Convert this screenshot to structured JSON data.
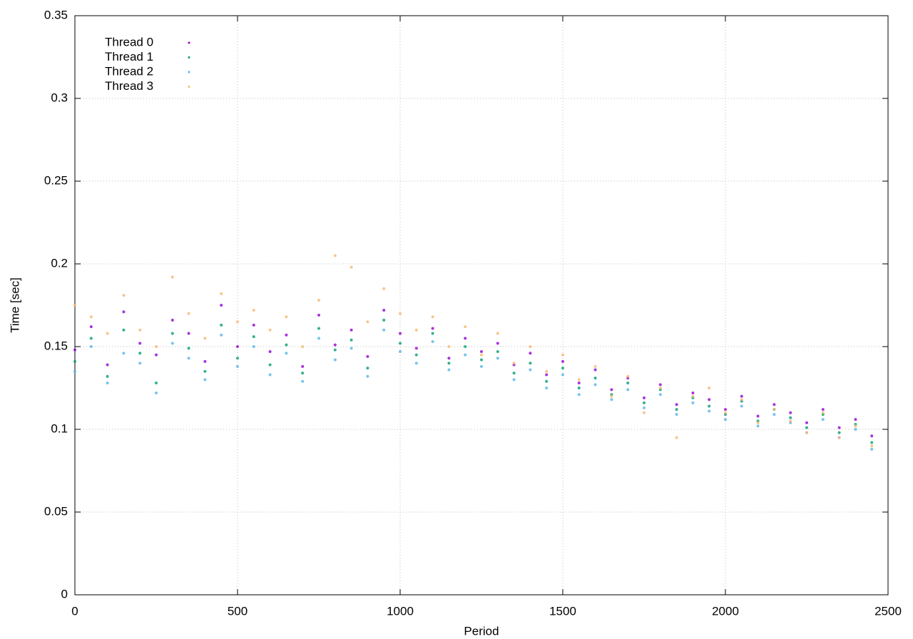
{
  "chart_data": {
    "type": "scatter",
    "xlabel": "Period",
    "ylabel": "Time [sec]",
    "x": [
      0,
      50,
      100,
      150,
      200,
      250,
      300,
      350,
      400,
      450,
      500,
      550,
      600,
      650,
      700,
      750,
      800,
      850,
      900,
      950,
      1000,
      1050,
      1100,
      1150,
      1200,
      1250,
      1300,
      1350,
      1400,
      1450,
      1500,
      1550,
      1600,
      1650,
      1700,
      1750,
      1800,
      1850,
      1900,
      1950,
      2000,
      2050,
      2100,
      2150,
      2200,
      2250,
      2300,
      2350,
      2400,
      2450
    ],
    "series": [
      {
        "name": "Thread 0",
        "color": "#9400d3",
        "values": [
          0.148,
          0.162,
          0.139,
          0.171,
          0.152,
          0.145,
          0.166,
          0.158,
          0.141,
          0.175,
          0.15,
          0.163,
          0.147,
          0.157,
          0.138,
          0.169,
          0.151,
          0.16,
          0.144,
          0.172,
          0.158,
          0.149,
          0.161,
          0.143,
          0.155,
          0.147,
          0.152,
          0.139,
          0.146,
          0.133,
          0.141,
          0.128,
          0.136,
          0.124,
          0.131,
          0.119,
          0.127,
          0.115,
          0.122,
          0.118,
          0.112,
          0.12,
          0.108,
          0.115,
          0.11,
          0.104,
          0.112,
          0.101,
          0.106,
          0.096
        ]
      },
      {
        "name": "Thread 1",
        "color": "#009e73",
        "values": [
          0.141,
          0.155,
          0.132,
          0.16,
          0.146,
          0.128,
          0.158,
          0.149,
          0.135,
          0.163,
          0.143,
          0.156,
          0.139,
          0.151,
          0.134,
          0.161,
          0.148,
          0.154,
          0.137,
          0.166,
          0.152,
          0.145,
          0.158,
          0.14,
          0.15,
          0.142,
          0.147,
          0.134,
          0.14,
          0.129,
          0.137,
          0.125,
          0.131,
          0.121,
          0.128,
          0.116,
          0.124,
          0.112,
          0.119,
          0.114,
          0.109,
          0.117,
          0.105,
          0.112,
          0.107,
          0.101,
          0.109,
          0.098,
          0.103,
          0.092
        ]
      },
      {
        "name": "Thread 2",
        "color": "#56b4e9",
        "values": [
          0.135,
          0.15,
          0.128,
          0.146,
          0.14,
          0.122,
          0.152,
          0.143,
          0.13,
          0.157,
          0.138,
          0.15,
          0.133,
          0.146,
          0.129,
          0.155,
          0.142,
          0.149,
          0.132,
          0.16,
          0.147,
          0.14,
          0.153,
          0.136,
          0.145,
          0.138,
          0.143,
          0.13,
          0.136,
          0.125,
          0.133,
          0.121,
          0.127,
          0.118,
          0.124,
          0.113,
          0.121,
          0.109,
          0.116,
          0.111,
          0.106,
          0.114,
          0.102,
          0.109,
          0.104,
          0.098,
          0.106,
          0.095,
          0.1,
          0.088
        ]
      },
      {
        "name": "Thread 3",
        "color": "#f5b870",
        "values": [
          0.175,
          0.168,
          0.158,
          0.181,
          0.16,
          0.15,
          0.192,
          0.17,
          0.155,
          0.182,
          0.165,
          0.172,
          0.16,
          0.168,
          0.15,
          0.178,
          0.205,
          0.198,
          0.165,
          0.185,
          0.17,
          0.16,
          0.168,
          0.15,
          0.162,
          0.145,
          0.158,
          0.14,
          0.15,
          0.135,
          0.145,
          0.13,
          0.138,
          0.12,
          0.132,
          0.11,
          0.125,
          0.095,
          0.12,
          0.125,
          0.11,
          0.118,
          0.104,
          0.112,
          0.105,
          0.098,
          0.11,
          0.095,
          0.102,
          0.09
        ]
      }
    ],
    "xlim": [
      0,
      2500
    ],
    "xticks": [
      0,
      500,
      1000,
      1500,
      2000,
      2500
    ],
    "ylim": [
      0,
      0.35
    ],
    "yticks": [
      0,
      0.05,
      0.1,
      0.15,
      0.2,
      0.25,
      0.3,
      0.35
    ],
    "grid": true,
    "legend": "top-left"
  }
}
